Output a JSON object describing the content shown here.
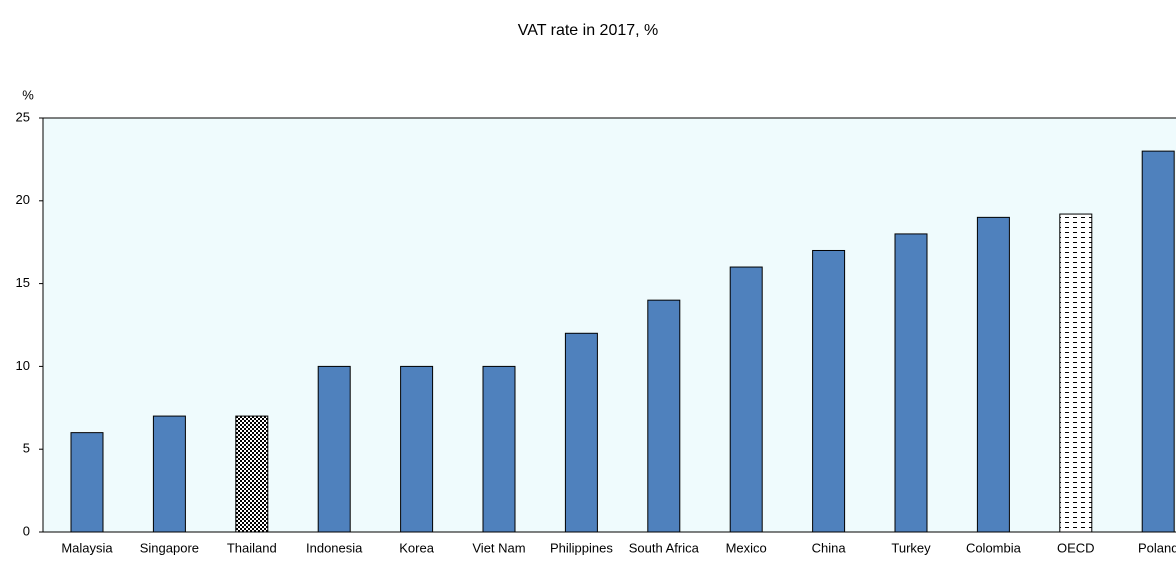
{
  "chart_data": {
    "type": "bar",
    "title": "VAT rate in 2017, %",
    "y_label": "%",
    "categories": [
      "Malaysia",
      "Singapore",
      "Thailand",
      "Indonesia",
      "Korea",
      "Viet Nam",
      "Philippines",
      "South Africa",
      "Mexico",
      "China",
      "Turkey",
      "Colombia",
      "OECD",
      "Poland"
    ],
    "values": [
      6,
      7,
      7,
      10,
      10,
      10,
      12,
      14,
      16,
      17,
      18,
      19,
      19.2,
      23
    ],
    "color": "#4f81bd",
    "patterns": [
      "solid",
      "solid",
      "checker",
      "solid",
      "solid",
      "solid",
      "solid",
      "solid",
      "solid",
      "solid",
      "solid",
      "solid",
      "dash",
      "solid"
    ],
    "ylim": [
      0,
      25
    ],
    "yticks": [
      0,
      5,
      10,
      15,
      20,
      25
    ],
    "grid": false
  }
}
